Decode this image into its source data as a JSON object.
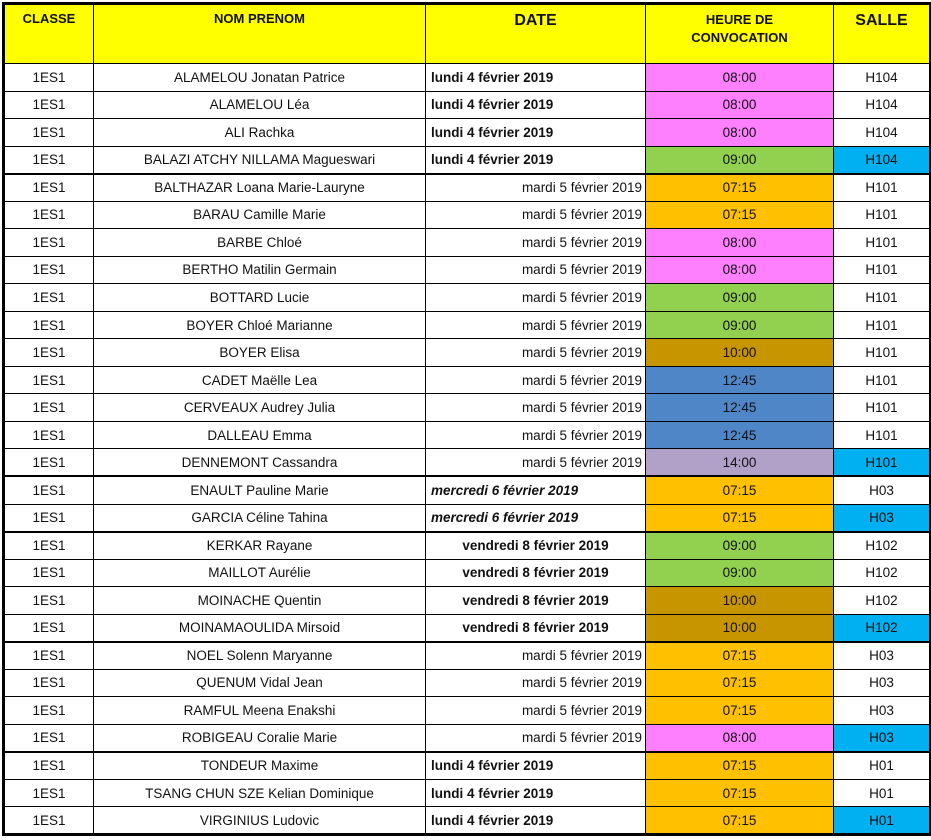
{
  "table": {
    "columns": [
      {
        "key": "classe",
        "label": "CLASSE"
      },
      {
        "key": "nom",
        "label": "NOM PRENOM"
      },
      {
        "key": "date",
        "label": "DATE"
      },
      {
        "key": "heure",
        "label": "HEURE DE CONVOCATION"
      },
      {
        "key": "salle",
        "label": "SALLE"
      }
    ],
    "header_bg": "#FFFF00",
    "colors": {
      "pink": "#FF80FF",
      "orange": "#FFC000",
      "green": "#92D050",
      "gold": "#C69500",
      "blue": "#4E86C8",
      "purple": "#B1A0C7",
      "cyan": "#00B0F0",
      "white": "#FFFFFF"
    },
    "rows": [
      {
        "classe": "1ES1",
        "nom": "ALAMELOU Jonatan Patrice",
        "date": "lundi 4 février 2019",
        "date_style": "bold-left",
        "heure": "08:00",
        "heure_color": "pink",
        "salle": "H104",
        "salle_color": "white",
        "group_start": false
      },
      {
        "classe": "1ES1",
        "nom": "ALAMELOU Léa",
        "date": "lundi 4 février 2019",
        "date_style": "bold-left",
        "heure": "08:00",
        "heure_color": "pink",
        "salle": "H104",
        "salle_color": "white",
        "group_start": false
      },
      {
        "classe": "1ES1",
        "nom": "ALI Rachka",
        "date": "lundi 4 février 2019",
        "date_style": "bold-left",
        "heure": "08:00",
        "heure_color": "pink",
        "salle": "H104",
        "salle_color": "white",
        "group_start": false
      },
      {
        "classe": "1ES1",
        "nom": "BALAZI ATCHY NILLAMA Magueswari",
        "date": "lundi 4 février 2019",
        "date_style": "bold-left",
        "heure": "09:00",
        "heure_color": "green",
        "salle": "H104",
        "salle_color": "cyan",
        "group_start": false
      },
      {
        "classe": "1ES1",
        "nom": "BALTHAZAR Loana Marie-Lauryne",
        "date": "mardi 5 février 2019",
        "date_style": "normal-right",
        "heure": "07:15",
        "heure_color": "orange",
        "salle": "H101",
        "salle_color": "white",
        "group_start": true
      },
      {
        "classe": "1ES1",
        "nom": "BARAU Camille Marie",
        "date": "mardi 5 février 2019",
        "date_style": "normal-right",
        "heure": "07:15",
        "heure_color": "orange",
        "salle": "H101",
        "salle_color": "white",
        "group_start": false
      },
      {
        "classe": "1ES1",
        "nom": "BARBE Chloé",
        "date": "mardi 5 février 2019",
        "date_style": "normal-right",
        "heure": "08:00",
        "heure_color": "pink",
        "salle": "H101",
        "salle_color": "white",
        "group_start": false
      },
      {
        "classe": "1ES1",
        "nom": "BERTHO Matilin Germain",
        "date": "mardi 5 février 2019",
        "date_style": "normal-right",
        "heure": "08:00",
        "heure_color": "pink",
        "salle": "H101",
        "salle_color": "white",
        "group_start": false
      },
      {
        "classe": "1ES1",
        "nom": "BOTTARD Lucie",
        "date": "mardi 5 février 2019",
        "date_style": "normal-right",
        "heure": "09:00",
        "heure_color": "green",
        "salle": "H101",
        "salle_color": "white",
        "group_start": false
      },
      {
        "classe": "1ES1",
        "nom": "BOYER Chloé Marianne",
        "date": "mardi 5 février 2019",
        "date_style": "normal-right",
        "heure": "09:00",
        "heure_color": "green",
        "salle": "H101",
        "salle_color": "white",
        "group_start": false
      },
      {
        "classe": "1ES1",
        "nom": "BOYER Elisa",
        "date": "mardi 5 février 2019",
        "date_style": "normal-right",
        "heure": "10:00",
        "heure_color": "gold",
        "salle": "H101",
        "salle_color": "white",
        "group_start": false
      },
      {
        "classe": "1ES1",
        "nom": "CADET Maëlle Lea",
        "date": "mardi 5 février 2019",
        "date_style": "normal-right",
        "heure": "12:45",
        "heure_color": "blue",
        "salle": "H101",
        "salle_color": "white",
        "group_start": false
      },
      {
        "classe": "1ES1",
        "nom": "CERVEAUX Audrey Julia",
        "date": "mardi 5 février 2019",
        "date_style": "normal-right",
        "heure": "12:45",
        "heure_color": "blue",
        "salle": "H101",
        "salle_color": "white",
        "group_start": false
      },
      {
        "classe": "1ES1",
        "nom": "DALLEAU Emma",
        "date": "mardi 5 février 2019",
        "date_style": "normal-right",
        "heure": "12:45",
        "heure_color": "blue",
        "salle": "H101",
        "salle_color": "white",
        "group_start": false
      },
      {
        "classe": "1ES1",
        "nom": "DENNEMONT Cassandra",
        "date": "mardi 5 février 2019",
        "date_style": "normal-right",
        "heure": "14:00",
        "heure_color": "purple",
        "salle": "H101",
        "salle_color": "cyan",
        "group_start": false
      },
      {
        "classe": "1ES1",
        "nom": "ENAULT Pauline Marie",
        "date": "mercredi 6 février 2019",
        "date_style": "bold-italic-left",
        "heure": "07:15",
        "heure_color": "orange",
        "salle": "H03",
        "salle_color": "white",
        "group_start": true
      },
      {
        "classe": "1ES1",
        "nom": "GARCIA Céline Tahina",
        "date": "mercredi 6 février 2019",
        "date_style": "bold-italic-left",
        "heure": "07:15",
        "heure_color": "orange",
        "salle": "H03",
        "salle_color": "cyan",
        "group_start": false
      },
      {
        "classe": "1ES1",
        "nom": "KERKAR Rayane",
        "date": "vendredi 8 février 2019",
        "date_style": "bold-center",
        "heure": "09:00",
        "heure_color": "green",
        "salle": "H102",
        "salle_color": "white",
        "group_start": true
      },
      {
        "classe": "1ES1",
        "nom": "MAILLOT Aurélie",
        "date": "vendredi 8 février 2019",
        "date_style": "bold-center",
        "heure": "09:00",
        "heure_color": "green",
        "salle": "H102",
        "salle_color": "white",
        "group_start": false
      },
      {
        "classe": "1ES1",
        "nom": "MOINACHE Quentin",
        "date": "vendredi 8 février 2019",
        "date_style": "bold-center",
        "heure": "10:00",
        "heure_color": "gold",
        "salle": "H102",
        "salle_color": "white",
        "group_start": false
      },
      {
        "classe": "1ES1",
        "nom": "MOINAMAOULIDA Mirsoid",
        "date": "vendredi 8 février 2019",
        "date_style": "bold-center",
        "heure": "10:00",
        "heure_color": "gold",
        "salle": "H102",
        "salle_color": "cyan",
        "group_start": false
      },
      {
        "classe": "1ES1",
        "nom": "NOEL Solenn Maryanne",
        "date": "mardi 5 février 2019",
        "date_style": "normal-right",
        "heure": "07:15",
        "heure_color": "orange",
        "salle": "H03",
        "salle_color": "white",
        "group_start": true
      },
      {
        "classe": "1ES1",
        "nom": "QUENUM Vidal Jean",
        "date": "mardi 5 février 2019",
        "date_style": "normal-right",
        "heure": "07:15",
        "heure_color": "orange",
        "salle": "H03",
        "salle_color": "white",
        "group_start": false
      },
      {
        "classe": "1ES1",
        "nom": "RAMFUL Meena Enakshi",
        "date": "mardi 5 février 2019",
        "date_style": "normal-right",
        "heure": "07:15",
        "heure_color": "orange",
        "salle": "H03",
        "salle_color": "white",
        "group_start": false
      },
      {
        "classe": "1ES1",
        "nom": "ROBIGEAU Coralie Marie",
        "date": "mardi 5 février 2019",
        "date_style": "normal-right",
        "heure": "08:00",
        "heure_color": "pink",
        "salle": "H03",
        "salle_color": "cyan",
        "group_start": false
      },
      {
        "classe": "1ES1",
        "nom": "TONDEUR Maxime",
        "date": "lundi 4 février 2019",
        "date_style": "bold-left",
        "heure": "07:15",
        "heure_color": "orange",
        "salle": "H01",
        "salle_color": "white",
        "group_start": true
      },
      {
        "classe": "1ES1",
        "nom": "TSANG CHUN SZE Kelian Dominique",
        "date": "lundi 4 février 2019",
        "date_style": "bold-left",
        "heure": "07:15",
        "heure_color": "orange",
        "salle": "H01",
        "salle_color": "white",
        "group_start": false
      },
      {
        "classe": "1ES1",
        "nom": "VIRGINIUS Ludovic",
        "date": "lundi 4 février 2019",
        "date_style": "bold-left",
        "heure": "07:15",
        "heure_color": "orange",
        "salle": "H01",
        "salle_color": "cyan",
        "group_start": false
      }
    ]
  }
}
